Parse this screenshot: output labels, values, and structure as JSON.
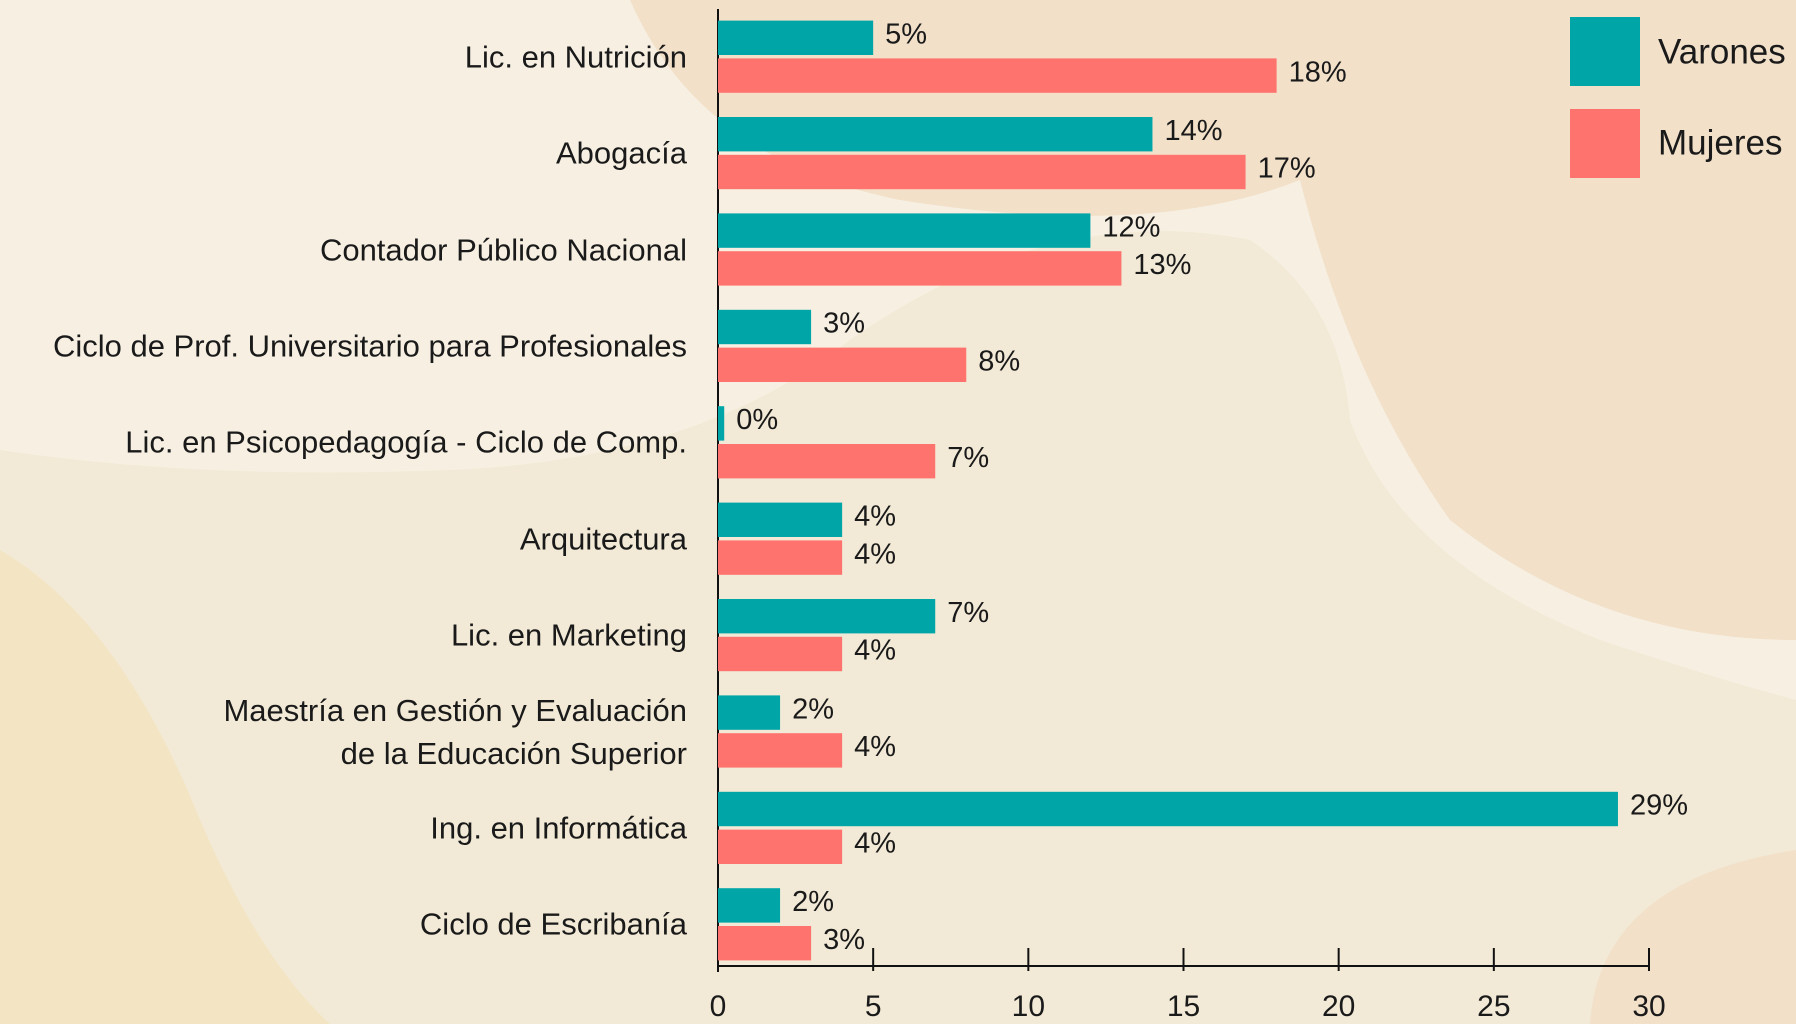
{
  "chart_data": {
    "type": "barh",
    "categories": [
      "Lic. en Nutrición",
      "Abogacía",
      "Contador Público Nacional",
      "Ciclo de Prof. Universitario para Profesionales",
      "Lic. en Psicopedagogía - Ciclo de Comp.",
      "Arquitectura",
      "Lic. en Marketing",
      "Maestría en Gestión y Evaluación\nde la Educación Superior",
      "Ing. en Informática",
      "Ciclo de Escribanía"
    ],
    "series": [
      {
        "name": "Varones",
        "color": "#00a5a8",
        "values": [
          5,
          14,
          12,
          3,
          0.2,
          4,
          7,
          2,
          29,
          2
        ],
        "value_labels": [
          "5%",
          "14%",
          "12%",
          "3%",
          "0%",
          "4%",
          "7%",
          "2%",
          "29%",
          "2%"
        ]
      },
      {
        "name": "Mujeres",
        "color": "#ff736e",
        "values": [
          18,
          17,
          13,
          8,
          7,
          4,
          4,
          4,
          4,
          3
        ],
        "value_labels": [
          "18%",
          "17%",
          "13%",
          "8%",
          "7%",
          "4%",
          "4%",
          "4%",
          "4%",
          "3%"
        ]
      }
    ],
    "xlim": [
      0,
      30
    ],
    "xticks": [
      0,
      5,
      10,
      15,
      20,
      25,
      30
    ],
    "legend": "upper right"
  }
}
